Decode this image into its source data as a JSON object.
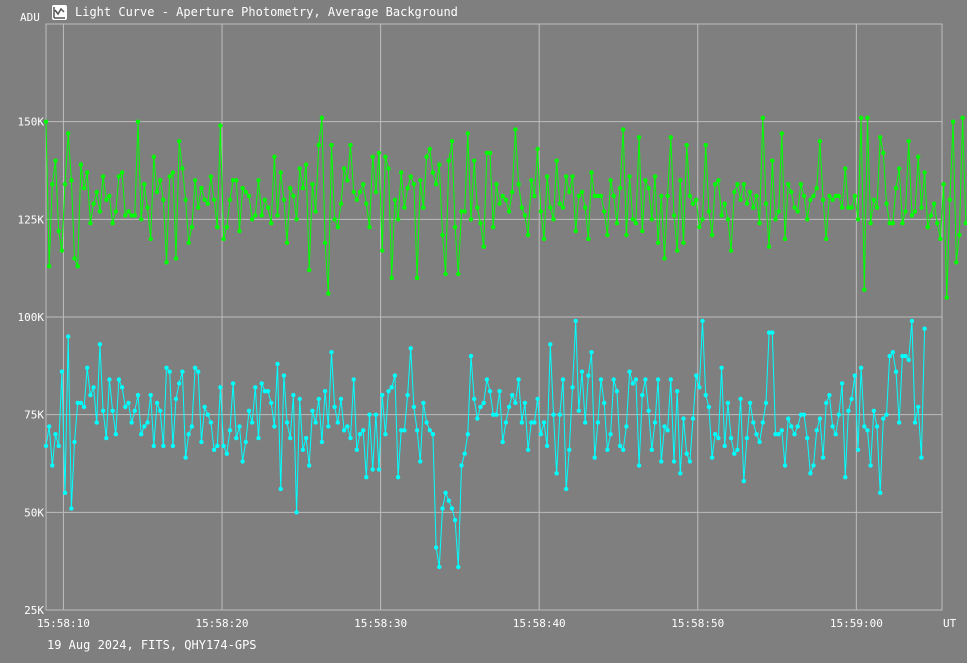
{
  "window": {
    "title": "Light Curve - Aperture Photometry, Average Background",
    "icon": "chart-app-icon"
  },
  "footer": {
    "text": "19 Aug 2024, FITS, QHY174-GPS"
  },
  "colors": {
    "background": "#7f7f7f",
    "grid": "#bdbdbd",
    "series_green": "#00ff00",
    "series_cyan": "#00ffff",
    "text": "#ffffff"
  },
  "chart_data": {
    "type": "line",
    "title": "Light Curve - Aperture Photometry, Average Background",
    "ylabel": "ADU",
    "xlabel": "UT",
    "ylim": [
      25000,
      175000
    ],
    "xlim": [
      "15:58:08.9",
      "15:59:05.4"
    ],
    "grid": true,
    "y_ticks": [
      {
        "value": 25000,
        "label": "25K"
      },
      {
        "value": 50000,
        "label": "50K"
      },
      {
        "value": 75000,
        "label": "75K"
      },
      {
        "value": 100000,
        "label": "100K"
      },
      {
        "value": 125000,
        "label": "125K"
      },
      {
        "value": 150000,
        "label": "150K"
      }
    ],
    "x_ticks": [
      {
        "value": "15:58:10",
        "label": "15:58:10"
      },
      {
        "value": "15:58:20",
        "label": "15:58:20"
      },
      {
        "value": "15:58:30",
        "label": "15:58:30"
      },
      {
        "value": "15:58:40",
        "label": "15:58:40"
      },
      {
        "value": "15:58:50",
        "label": "15:58:50"
      },
      {
        "value": "15:59:00",
        "label": "15:59:00"
      }
    ],
    "x": {
      "start": "15:58:08.9",
      "step_seconds": 0.2,
      "count": 283
    },
    "series": [
      {
        "color": "#00ff00",
        "values": [
          150000,
          113000,
          134000,
          140000,
          122000,
          117000,
          134000,
          147000,
          135000,
          115000,
          113000,
          139000,
          133000,
          137000,
          124000,
          129000,
          132000,
          127000,
          136000,
          130000,
          131000,
          124000,
          127000,
          136000,
          137000,
          126000,
          127000,
          126000,
          126000,
          150000,
          125000,
          134000,
          128000,
          120000,
          141000,
          132000,
          135000,
          130000,
          114000,
          136000,
          137000,
          115000,
          145000,
          138000,
          130000,
          119000,
          123000,
          135000,
          128000,
          133000,
          130000,
          129000,
          136000,
          130000,
          123000,
          149000,
          120000,
          123000,
          130000,
          135000,
          135000,
          122000,
          133000,
          132000,
          131000,
          125000,
          126000,
          135000,
          126000,
          130000,
          128000,
          124000,
          141000,
          126000,
          137000,
          130000,
          119000,
          133000,
          131000,
          125000,
          138000,
          133000,
          139000,
          112000,
          134000,
          127000,
          144000,
          151000,
          119000,
          106000,
          144000,
          125000,
          123000,
          129000,
          138000,
          135000,
          144000,
          132000,
          130000,
          132000,
          134000,
          129000,
          123000,
          141000,
          132000,
          142000,
          117000,
          141000,
          138000,
          110000,
          130000,
          125000,
          137000,
          128000,
          133000,
          136000,
          134000,
          110000,
          135000,
          128000,
          141000,
          143000,
          137000,
          134000,
          139000,
          121000,
          111000,
          140000,
          145000,
          123000,
          111000,
          127000,
          127000,
          147000,
          125000,
          140000,
          128000,
          124000,
          118000,
          142000,
          142000,
          123000,
          134000,
          129000,
          131000,
          130000,
          127000,
          132000,
          148000,
          134000,
          128000,
          126000,
          121000,
          135000,
          131000,
          143000,
          127000,
          120000,
          136000,
          128000,
          125000,
          140000,
          129000,
          128000,
          136000,
          132000,
          136000,
          122000,
          131000,
          132000,
          128000,
          120000,
          137000,
          131000,
          131000,
          131000,
          127000,
          121000,
          135000,
          131000,
          124000,
          133000,
          148000,
          121000,
          136000,
          125000,
          124000,
          146000,
          122000,
          135000,
          133000,
          125000,
          136000,
          119000,
          131000,
          115000,
          131000,
          146000,
          126000,
          117000,
          135000,
          119000,
          144000,
          131000,
          129000,
          130000,
          123000,
          125000,
          144000,
          127000,
          121000,
          134000,
          135000,
          126000,
          129000,
          125000,
          117000,
          132000,
          134000,
          130000,
          134000,
          129000,
          132000,
          128000,
          131000,
          124000,
          151000,
          129000,
          118000,
          140000,
          125000,
          127000,
          147000,
          120000,
          134000,
          132000,
          128000,
          127000,
          134000,
          131000,
          125000,
          130000,
          131000,
          133000,
          145000,
          130000,
          120000,
          131000,
          130000,
          131000,
          131000,
          128000,
          138000,
          128000,
          128000,
          131000,
          125000,
          151000,
          107000,
          151000,
          124000,
          130000,
          128000,
          146000,
          142000,
          129000,
          124000,
          124000,
          133000,
          138000,
          124000,
          127000,
          145000,
          126000,
          127000,
          141000,
          128000,
          137000,
          123000,
          126000,
          129000,
          124000,
          120000,
          134000,
          105000,
          130000,
          150000,
          114000,
          121000,
          151000,
          124000
        ]
      },
      {
        "color": "#00ffff",
        "values": [
          67000,
          72000,
          62000,
          70000,
          67000,
          86000,
          55000,
          95000,
          51000,
          68000,
          78000,
          78000,
          77000,
          87000,
          80000,
          82000,
          73000,
          93000,
          76000,
          69000,
          84000,
          76000,
          70000,
          84000,
          82000,
          77000,
          78000,
          73000,
          76000,
          80000,
          70000,
          72000,
          73000,
          80000,
          67000,
          78000,
          76000,
          67000,
          87000,
          86000,
          67000,
          79000,
          83000,
          86000,
          64000,
          70000,
          72000,
          87000,
          86000,
          68000,
          77000,
          75000,
          73000,
          66000,
          67000,
          82000,
          67000,
          65000,
          71000,
          83000,
          69000,
          72000,
          63000,
          68000,
          76000,
          73000,
          82000,
          69000,
          83000,
          81000,
          81000,
          78000,
          72000,
          88000,
          56000,
          85000,
          73000,
          69000,
          80000,
          50000,
          79000,
          66000,
          69000,
          62000,
          76000,
          73000,
          79000,
          68000,
          81000,
          72000,
          91000,
          77000,
          73000,
          79000,
          71000,
          72000,
          69000,
          84000,
          66000,
          70000,
          71000,
          59000,
          75000,
          61000,
          75000,
          61000,
          80000,
          70000,
          81000,
          82000,
          85000,
          59000,
          71000,
          71000,
          80000,
          92000,
          77000,
          71000,
          63000,
          78000,
          73000,
          71000,
          70000,
          41000,
          36000,
          51000,
          55000,
          53000,
          51000,
          48000,
          36000,
          62000,
          65000,
          70000,
          90000,
          79000,
          74000,
          77000,
          78000,
          84000,
          81000,
          75000,
          75000,
          81000,
          68000,
          73000,
          77000,
          80000,
          78000,
          84000,
          73000,
          78000,
          66000,
          73000,
          73000,
          79000,
          70000,
          73000,
          67000,
          93000,
          75000,
          60000,
          75000,
          84000,
          56000,
          66000,
          82000,
          99000,
          76000,
          86000,
          73000,
          85000,
          91000,
          64000,
          73000,
          84000,
          78000,
          66000,
          70000,
          84000,
          81000,
          67000,
          66000,
          72000,
          86000,
          83000,
          84000,
          62000,
          80000,
          84000,
          76000,
          66000,
          73000,
          84000,
          63000,
          72000,
          71000,
          84000,
          63000,
          81000,
          60000,
          74000,
          65000,
          63000,
          74000,
          85000,
          82000,
          99000,
          80000,
          77000,
          64000,
          70000,
          69000,
          87000,
          67000,
          78000,
          69000,
          65000,
          66000,
          79000,
          58000,
          69000,
          78000,
          73000,
          70000,
          68000,
          73000,
          78000,
          96000,
          96000,
          70000,
          70000,
          71000,
          62000,
          74000,
          72000,
          70000,
          72000,
          75000,
          75000,
          69000,
          60000,
          62000,
          71000,
          74000,
          64000,
          78000,
          80000,
          72000,
          70000,
          75000,
          83000,
          59000,
          76000,
          79000,
          85000,
          66000,
          87000,
          72000,
          71000,
          62000,
          76000,
          72000,
          55000,
          74000,
          75000,
          90000,
          91000,
          86000,
          73000,
          90000,
          90000,
          89000,
          99000,
          73000,
          77000,
          64000,
          97000
        ]
      }
    ]
  }
}
